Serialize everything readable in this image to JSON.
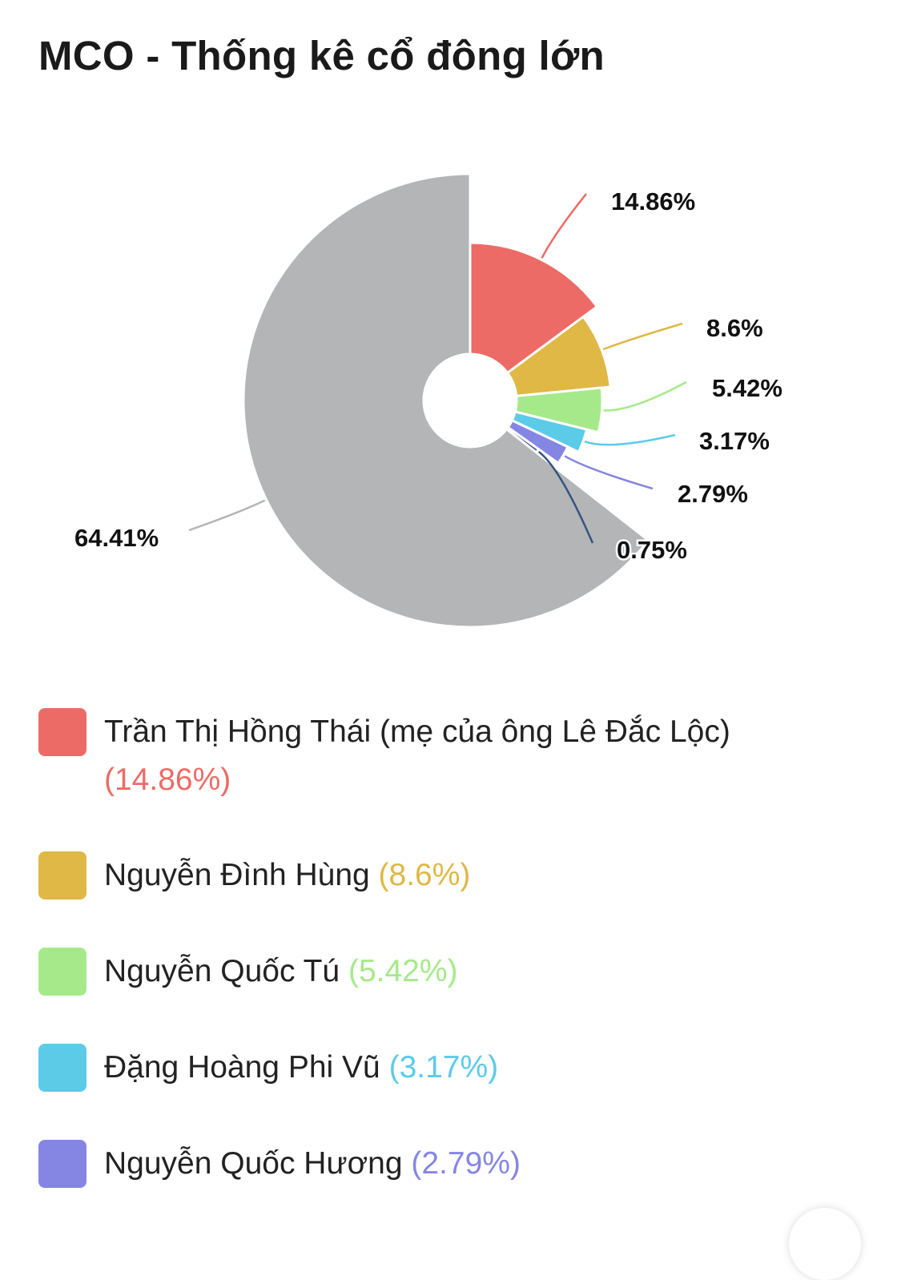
{
  "title": "MCO - Thống kê cổ đông lớn",
  "chart_data": {
    "type": "pie",
    "title": "MCO - Thống kê cổ đông lớn",
    "start_angle": "top, clockwise",
    "slices": [
      {
        "name": "Trần Thị Hồng Thái (mẹ của ông Lê Đắc Lộc)",
        "value": 14.86,
        "label": "14.86%",
        "legend_value": "(14.86%)",
        "color": "#ec6b66"
      },
      {
        "name": "Nguyễn Đình Hùng",
        "value": 8.6,
        "label": "8.6%",
        "legend_value": "(8.6%)",
        "color": "#dfb845"
      },
      {
        "name": "Nguyễn Quốc Tú",
        "value": 5.42,
        "label": "5.42%",
        "legend_value": "(5.42%)",
        "color": "#a6e98a"
      },
      {
        "name": "Đặng Hoàng Phi Vũ",
        "value": 3.17,
        "label": "3.17%",
        "legend_value": "(3.17%)",
        "color": "#5ccbe8"
      },
      {
        "name": "Nguyễn Quốc Hương",
        "value": 2.79,
        "label": "2.79%",
        "legend_value": "(2.79%)",
        "color": "#8586e3"
      },
      {
        "name": "",
        "value": 0.75,
        "label": "0.75%",
        "color": "#34557f"
      },
      {
        "name": "",
        "value": 64.41,
        "label": "64.41%",
        "color": "#b4b5b7"
      }
    ],
    "legend_position": "bottom"
  }
}
